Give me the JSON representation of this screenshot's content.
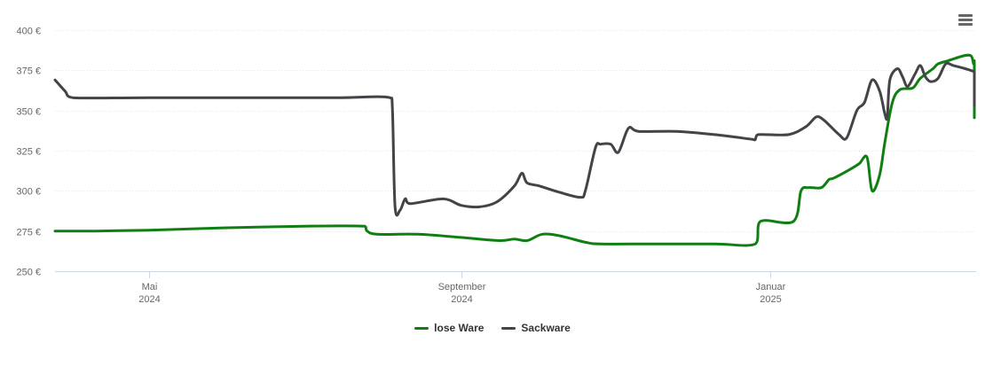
{
  "menu": {
    "icon": "hamburger-menu-icon"
  },
  "chart_data": {
    "type": "line",
    "title": "",
    "xlabel": "",
    "ylabel": "",
    "x_range": [
      "2024-03-25",
      "2025-03-23"
    ],
    "ylim": [
      250,
      400
    ],
    "y_ticks": [
      250,
      275,
      300,
      325,
      350,
      375,
      400
    ],
    "y_tick_labels": [
      "250 €",
      "275 €",
      "300 €",
      "325 €",
      "350 €",
      "375 €",
      "400 €"
    ],
    "x_ticks": [
      {
        "date": "2024-05-01",
        "label": "Mai",
        "sublabel": "2024"
      },
      {
        "date": "2024-09-01",
        "label": "September",
        "sublabel": "2024"
      },
      {
        "date": "2025-01-01",
        "label": "Januar",
        "sublabel": "2025"
      }
    ],
    "grid": true,
    "legend_position": "bottom-center",
    "series": [
      {
        "name": "lose Ware",
        "color": "#0f7f12",
        "points": [
          [
            "2024-03-25",
            275
          ],
          [
            "2024-04-10",
            275
          ],
          [
            "2024-05-01",
            275.5
          ],
          [
            "2024-06-01",
            277
          ],
          [
            "2024-07-01",
            278
          ],
          [
            "2024-07-25",
            278
          ],
          [
            "2024-07-26",
            275
          ],
          [
            "2024-07-30",
            273
          ],
          [
            "2024-08-15",
            273
          ],
          [
            "2024-09-01",
            271
          ],
          [
            "2024-09-16",
            269
          ],
          [
            "2024-09-22",
            270
          ],
          [
            "2024-09-27",
            269
          ],
          [
            "2024-10-03",
            273
          ],
          [
            "2024-10-10",
            272
          ],
          [
            "2024-10-20",
            268
          ],
          [
            "2024-10-26",
            267
          ],
          [
            "2024-11-15",
            267
          ],
          [
            "2024-12-10",
            267
          ],
          [
            "2024-12-26",
            267
          ],
          [
            "2024-12-28",
            281
          ],
          [
            "2025-01-10",
            281
          ],
          [
            "2025-01-13",
            300
          ],
          [
            "2025-01-16",
            302
          ],
          [
            "2025-01-21",
            302
          ],
          [
            "2025-01-24",
            307
          ],
          [
            "2025-01-26",
            308
          ],
          [
            "2025-02-02",
            314
          ],
          [
            "2025-02-05",
            317
          ],
          [
            "2025-02-08",
            321
          ],
          [
            "2025-02-10",
            300
          ],
          [
            "2025-02-13",
            310
          ],
          [
            "2025-02-15",
            330
          ],
          [
            "2025-02-18",
            355
          ],
          [
            "2025-02-21",
            363
          ],
          [
            "2025-02-26",
            364
          ],
          [
            "2025-03-01",
            370
          ],
          [
            "2025-03-06",
            376
          ],
          [
            "2025-03-08",
            379
          ],
          [
            "2025-03-12",
            381
          ],
          [
            "2025-03-18",
            384
          ],
          [
            "2025-03-21",
            384
          ],
          [
            "2025-03-22",
            379
          ],
          [
            "2025-04-06",
            379
          ],
          [
            "2025-04-07",
            348
          ],
          [
            "2025-04-08",
            347
          ]
        ]
      },
      {
        "name": "Sackware",
        "color": "#434348",
        "points": [
          [
            "2024-03-25",
            369
          ],
          [
            "2024-03-29",
            362
          ],
          [
            "2024-04-01",
            358
          ],
          [
            "2024-05-01",
            358
          ],
          [
            "2024-06-15",
            358
          ],
          [
            "2024-07-15",
            358
          ],
          [
            "2024-08-04",
            358
          ],
          [
            "2024-08-05",
            350
          ],
          [
            "2024-08-06",
            290
          ],
          [
            "2024-08-08",
            288
          ],
          [
            "2024-08-10",
            295
          ],
          [
            "2024-08-12",
            292
          ],
          [
            "2024-08-25",
            295
          ],
          [
            "2024-09-01",
            291
          ],
          [
            "2024-09-08",
            290
          ],
          [
            "2024-09-15",
            293
          ],
          [
            "2024-09-22",
            303
          ],
          [
            "2024-09-25",
            311
          ],
          [
            "2024-09-27",
            305
          ],
          [
            "2024-10-02",
            303
          ],
          [
            "2024-10-10",
            299
          ],
          [
            "2024-10-18",
            296
          ],
          [
            "2024-10-20",
            300
          ],
          [
            "2024-10-24",
            327
          ],
          [
            "2024-10-26",
            329
          ],
          [
            "2024-10-30",
            329
          ],
          [
            "2024-11-02",
            324
          ],
          [
            "2024-11-06",
            339
          ],
          [
            "2024-11-10",
            337
          ],
          [
            "2024-11-25",
            337
          ],
          [
            "2024-12-10",
            335
          ],
          [
            "2024-12-25",
            332
          ],
          [
            "2024-12-26",
            332
          ],
          [
            "2024-12-27",
            335
          ],
          [
            "2025-01-08",
            335
          ],
          [
            "2025-01-15",
            340
          ],
          [
            "2025-01-19",
            346
          ],
          [
            "2025-01-22",
            344
          ],
          [
            "2025-01-28",
            335
          ],
          [
            "2025-01-31",
            333
          ],
          [
            "2025-02-04",
            350
          ],
          [
            "2025-02-07",
            355
          ],
          [
            "2025-02-10",
            369
          ],
          [
            "2025-02-13",
            362
          ],
          [
            "2025-02-15",
            348
          ],
          [
            "2025-02-16",
            346
          ],
          [
            "2025-02-17",
            369
          ],
          [
            "2025-02-20",
            376
          ],
          [
            "2025-02-22",
            371
          ],
          [
            "2025-02-24",
            365
          ],
          [
            "2025-02-27",
            373
          ],
          [
            "2025-03-01",
            378
          ],
          [
            "2025-03-03",
            371
          ],
          [
            "2025-03-05",
            368
          ],
          [
            "2025-03-08",
            370
          ],
          [
            "2025-03-11",
            379
          ],
          [
            "2025-03-14",
            378
          ],
          [
            "2025-03-24",
            374
          ],
          [
            "2025-03-28",
            370
          ],
          [
            "2025-04-02",
            363
          ],
          [
            "2025-04-04",
            356
          ],
          [
            "2025-04-07",
            355
          ],
          [
            "2025-04-08",
            353
          ]
        ]
      }
    ]
  }
}
